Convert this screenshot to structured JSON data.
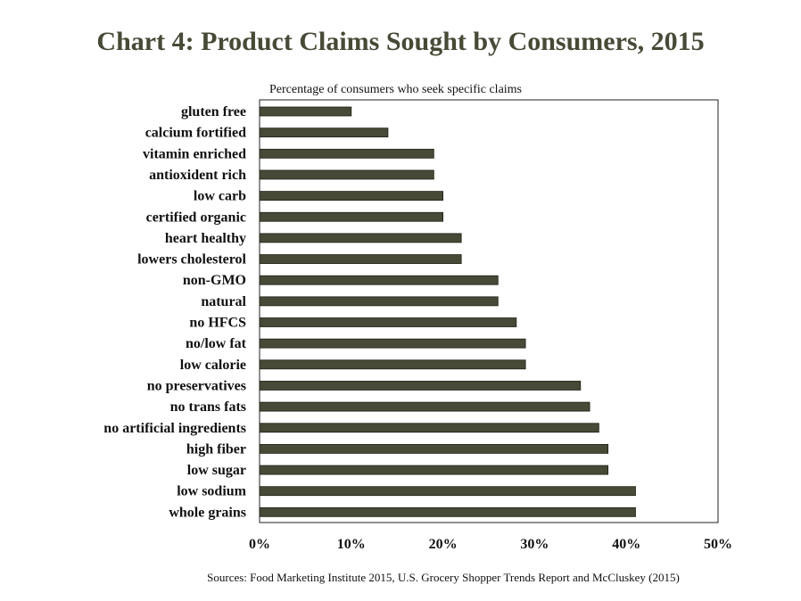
{
  "chart_data": {
    "type": "bar",
    "orientation": "horizontal",
    "title": "Chart 4: Product Claims Sought by Consumers, 2015",
    "subtitle": "Percentage of consumers who seek specific claims",
    "source": "Sources: Food Marketing Institute 2015, U.S. Grocery Shopper Trends Report and McCluskey (2015)",
    "categories": [
      "gluten free",
      "calcium fortified",
      "vitamin enriched",
      "antioxident rich",
      "low carb",
      "certified organic",
      "heart healthy",
      "lowers cholesterol",
      "non-GMO",
      "natural",
      "no HFCS",
      "no/low fat",
      "low calorie",
      "no preservatives",
      "no trans fats",
      "no artificial ingredients",
      "high fiber",
      "low sugar",
      "low sodium",
      "whole grains"
    ],
    "values": [
      10,
      14,
      19,
      19,
      20,
      20,
      22,
      22,
      26,
      26,
      28,
      29,
      29,
      35,
      36,
      37,
      38,
      38,
      41,
      41
    ],
    "xlim": [
      0,
      50
    ],
    "xticks": [
      "0%",
      "10%",
      "20%",
      "30%",
      "40%",
      "50%"
    ],
    "xlabel": "",
    "ylabel": "",
    "grid": false,
    "bar_color": "#464a36",
    "title_color": "#464a36"
  }
}
